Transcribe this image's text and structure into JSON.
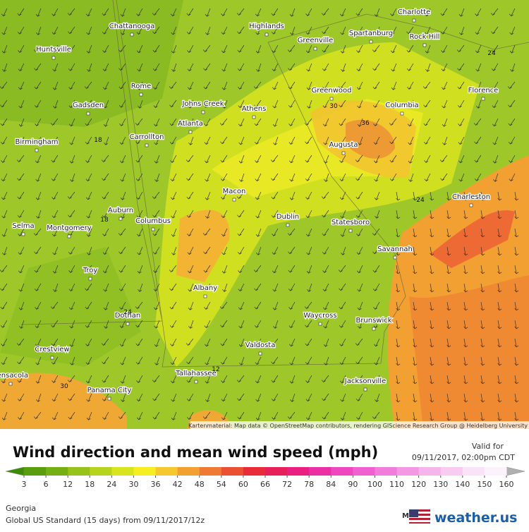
{
  "map": {
    "cities": [
      "Charlotte",
      "Chattanooga",
      "Highlands",
      "Spartanburg",
      "Rock Hill",
      "Huntsville",
      "Greenville",
      "Rome",
      "Greenwood",
      "Florence",
      "Gadsden",
      "Johns Creek",
      "Athens",
      "Columbia",
      "Atlanta",
      "Carrollton",
      "Birmingham",
      "Augusta",
      "Macon",
      "Charleston",
      "Auburn",
      "Dublin",
      "Statesboro",
      "Selma",
      "Columbus",
      "Montgomery",
      "Savannah",
      "Troy",
      "Albany",
      "Dothan",
      "Waycross",
      "Brunswick",
      "Crestview",
      "Valdosta",
      "Tallahassee",
      "Pensacola",
      "Jacksonville",
      "Panama City"
    ],
    "contour_labels": [
      "24",
      "30",
      "36",
      "18",
      "24",
      "18",
      "24",
      "12",
      "30"
    ],
    "attribution": "Kartenmaterial: Map data © OpenStreetMap contributors, rendering GIScience Research Group @ Heidelberg University"
  },
  "legend": {
    "title": "Wind direction and mean wind speed (mph)",
    "valid_label": "Valid for",
    "valid_time": "09/11/2017, 02:00pm CDT",
    "scale": {
      "ticks": [
        3,
        6,
        12,
        18,
        24,
        30,
        36,
        42,
        48,
        54,
        60,
        66,
        72,
        78,
        84,
        90,
        100,
        110,
        120,
        130,
        140,
        150,
        160
      ],
      "colors": [
        "#5a9e10",
        "#74b014",
        "#96c21a",
        "#b6d41e",
        "#d8e41e",
        "#f4ee22",
        "#f6c830",
        "#f2a032",
        "#ee7a34",
        "#ec5032",
        "#e82c3a",
        "#e8205a",
        "#ea2080",
        "#ec30a4",
        "#ee48c0",
        "#f060d0",
        "#f27cdc",
        "#f498e4",
        "#f6b4ec",
        "#f8ccf2",
        "#fae2f8",
        "#fcf2fc"
      ]
    }
  },
  "footer": {
    "region": "Georgia",
    "model_run": "Global US Standard (15 days) from 09/11/2017/12z",
    "model_label": "Model:",
    "brand": "weather.us"
  }
}
